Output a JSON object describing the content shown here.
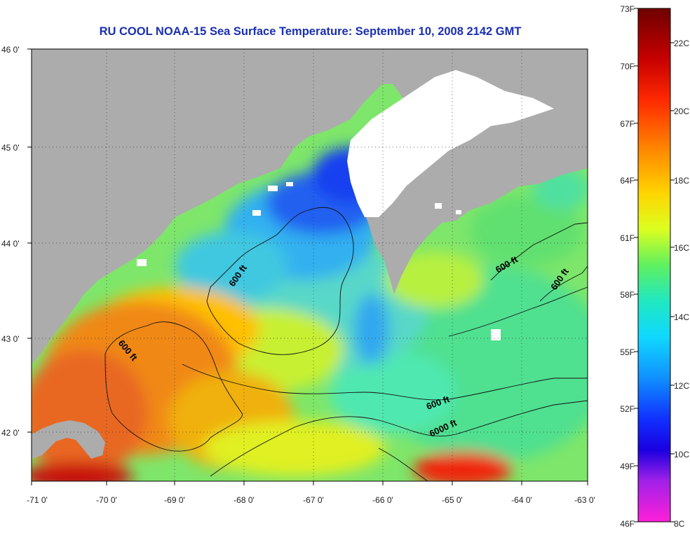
{
  "title": "RU COOL  NOAA-15  Sea Surface Temperature:  September 10, 2008 2142 GMT",
  "map": {
    "lon_ticks": [
      "-71 0'",
      "-70 0'",
      "-69 0'",
      "-68 0'",
      "-67 0'",
      "-66 0'",
      "-65 0'",
      "-64 0'",
      "-63 0'"
    ],
    "lat_ticks": [
      "46 0'",
      "45 0'",
      "44 0'",
      "43 0'",
      "42 0'"
    ],
    "contour_labels": [
      "600 ft",
      "600 ft",
      "600 ft",
      "600 ft",
      "600 ft",
      "6000 ft"
    ],
    "colors": {
      "land": "#acacac",
      "no_data": "#ffffff",
      "warm": "#e8631d",
      "cool": "#2a56f0"
    }
  },
  "colorbar": {
    "fahrenheit_labels": [
      "73F",
      "70F",
      "67F",
      "64F",
      "61F",
      "58F",
      "55F",
      "52F",
      "49F",
      "46F"
    ],
    "celsius_labels": [
      "22C",
      "20C",
      "18C",
      "16C",
      "14C",
      "12C",
      "10C",
      "8C"
    ]
  }
}
